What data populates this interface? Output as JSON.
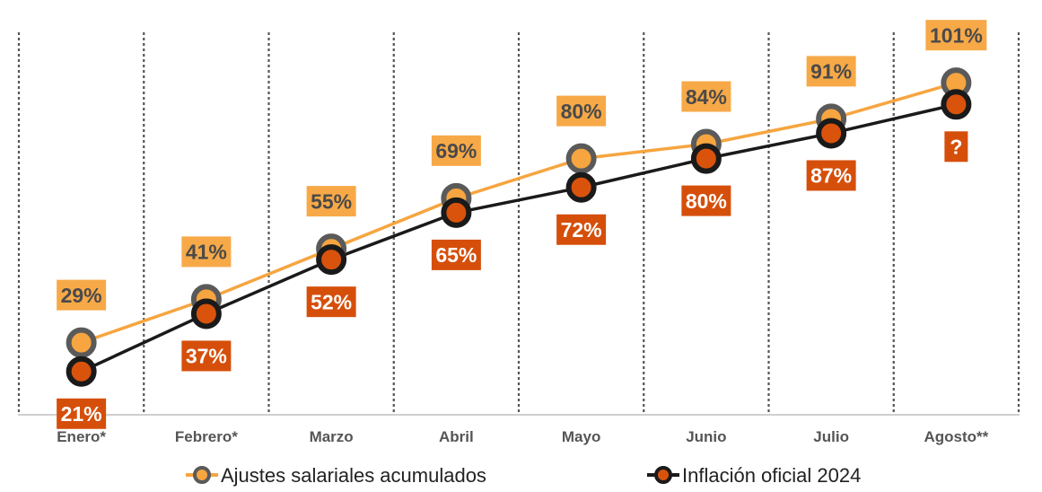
{
  "chart_data": {
    "type": "line",
    "title": "",
    "xlabel": "",
    "ylabel": "",
    "ylim": [
      10,
      110
    ],
    "grid": "vertical-dashed",
    "categories": [
      "Enero*",
      "Febrero*",
      "Marzo",
      "Abril",
      "Mayo",
      "Junio",
      "Julio",
      "Agosto**"
    ],
    "series": [
      {
        "name": "Ajustes salariales acumulados",
        "values": [
          29,
          41,
          55,
          69,
          80,
          84,
          91,
          101
        ],
        "labels": [
          "29%",
          "41%",
          "55%",
          "69%",
          "80%",
          "84%",
          "91%",
          "101%"
        ],
        "line_color": "#F6A540",
        "marker_fill": "#F6A540",
        "marker_stroke": "#5A5A5A",
        "label_bg": "#F7A948",
        "label_color": "#4A4A4A",
        "label_position": "above"
      },
      {
        "name": "Inflación oficial 2024",
        "values": [
          21,
          37,
          52,
          65,
          72,
          80,
          87,
          95
        ],
        "labels": [
          "21%",
          "37%",
          "52%",
          "65%",
          "72%",
          "80%",
          "87%",
          "?"
        ],
        "line_color": "#1A1A1A",
        "marker_fill": "#D9530C",
        "marker_stroke": "#1A1A1A",
        "label_bg": "#D54F0B",
        "label_color": "#FFFFFF",
        "label_position": "below"
      }
    ],
    "legend": "bottom"
  }
}
